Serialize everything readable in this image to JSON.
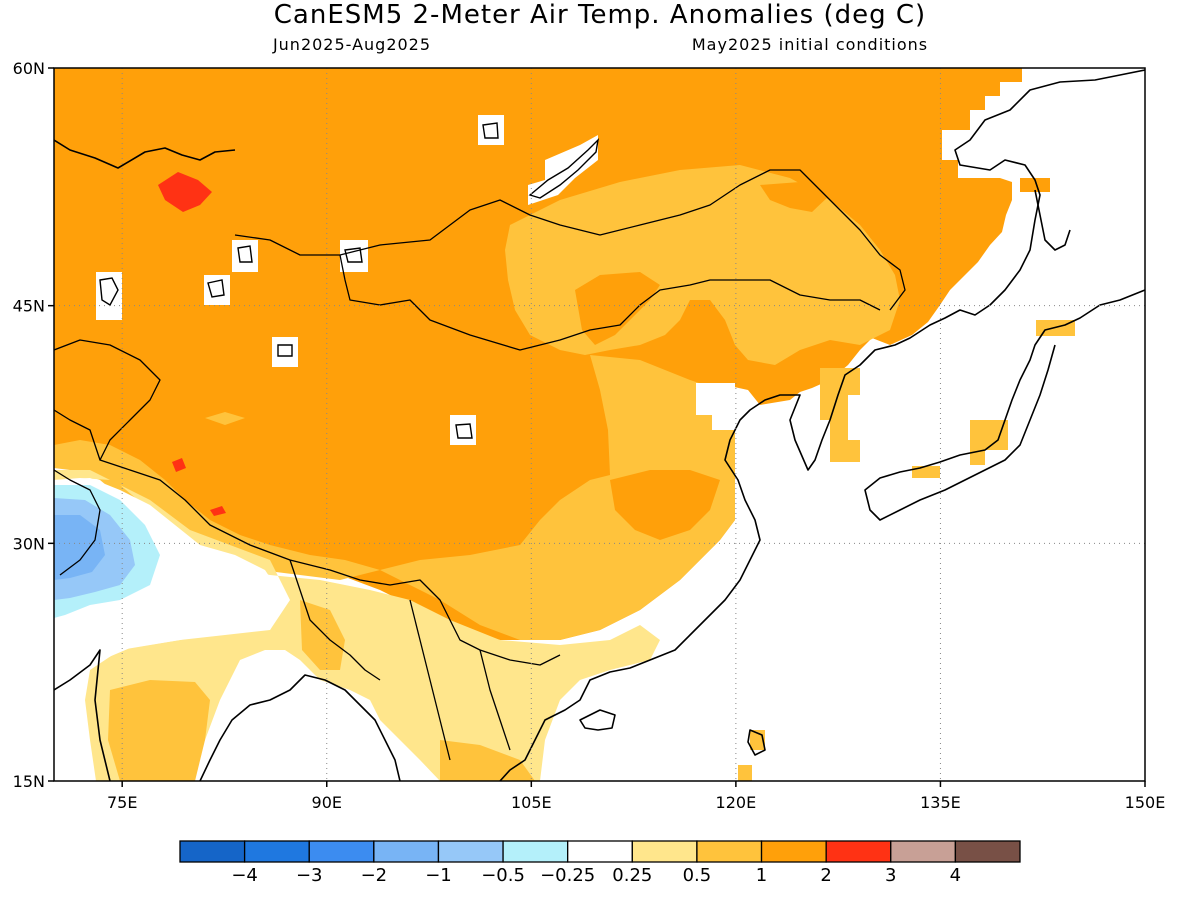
{
  "title": "CanESM5 2-Meter Air Temp. Anomalies (deg C)",
  "period": "Jun2025-Aug2025",
  "initial_conditions": "May2025 initial conditions",
  "map": {
    "lon_range": [
      70,
      150
    ],
    "lat_range": [
      15,
      60
    ],
    "lat_ticks": [
      {
        "value": 60,
        "label": "60N"
      },
      {
        "value": 45,
        "label": "45N"
      },
      {
        "value": 30,
        "label": "30N"
      },
      {
        "value": 15,
        "label": "15N"
      }
    ],
    "lon_ticks": [
      {
        "value": 75,
        "label": "75E"
      },
      {
        "value": 90,
        "label": "90E"
      },
      {
        "value": 105,
        "label": "105E"
      },
      {
        "value": 120,
        "label": "120E"
      },
      {
        "value": 135,
        "label": "135E"
      },
      {
        "value": 150,
        "label": "150E"
      }
    ],
    "grid_lons": [
      75,
      90,
      105,
      120,
      135
    ],
    "grid_lats": [
      45,
      30
    ],
    "grid": true
  },
  "colorbar": {
    "colors": [
      "#1565c8",
      "#1f78e0",
      "#3c8cf0",
      "#78b4f5",
      "#96c8f8",
      "#b4f0fa",
      "#ffffff",
      "#ffe68c",
      "#ffc33c",
      "#ffa00a",
      "#ff3214",
      "#c8a096",
      "#785046"
    ],
    "labels": [
      "-4",
      "-3",
      "-2",
      "-1",
      "-0.5",
      "-0.25",
      "0.25",
      "0.5",
      "1",
      "2",
      "3",
      "4"
    ]
  },
  "anomaly_field": {
    "units": "deg C",
    "dominant_category": "1 to 2",
    "note_regions": [
      {
        "region": "Central Asia / Mongolia / Tibet / N China",
        "range": "1 to 2"
      },
      {
        "region": "Southern Mongolia / NE China band",
        "range": "0.5 to 1"
      },
      {
        "region": "SE China / Indochina",
        "range": "0.25 to 1"
      },
      {
        "region": "NW India / Pakistan",
        "range": "-1 to -0.25"
      },
      {
        "region": "Kazakhstan spot",
        "range": "2 to 3"
      }
    ]
  }
}
